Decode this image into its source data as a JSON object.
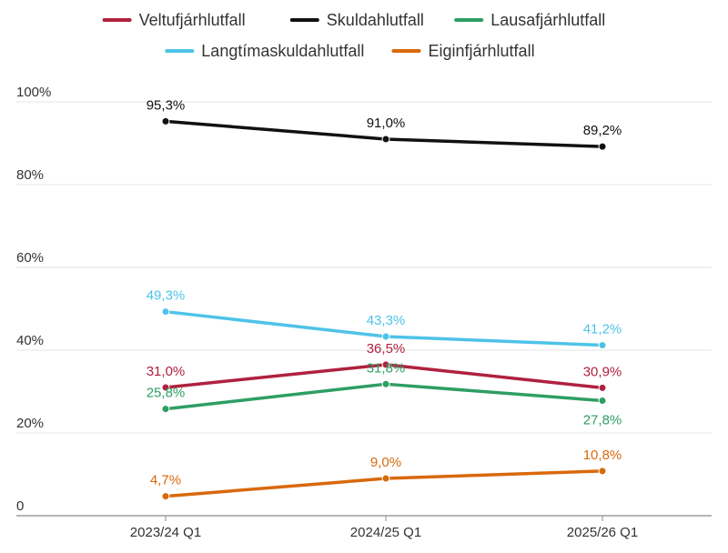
{
  "chart_data": {
    "type": "line",
    "title": "",
    "xlabel": "",
    "ylabel": "",
    "categories": [
      "2023/24 Q1",
      "2024/25 Q1",
      "2025/26 Q1"
    ],
    "y_ticks": [
      {
        "value": 0,
        "label": "0"
      },
      {
        "value": 20,
        "label": "20%"
      },
      {
        "value": 40,
        "label": "40%"
      },
      {
        "value": 60,
        "label": "60%"
      },
      {
        "value": 80,
        "label": "80%"
      },
      {
        "value": 100,
        "label": "100%"
      }
    ],
    "ylim": [
      0,
      100
    ],
    "grid": true,
    "legend_position": "top",
    "series": [
      {
        "name": "Veltufjárhlutfall",
        "color": "#b0213f",
        "values": [
          31.0,
          36.5,
          30.9
        ],
        "labels": [
          "31,0%",
          "36,5%",
          "30,9%"
        ],
        "label_pos": [
          "above",
          "above",
          "above"
        ]
      },
      {
        "name": "Skuldahlutfall",
        "color": "#111111",
        "values": [
          95.3,
          91.0,
          89.2
        ],
        "labels": [
          "95,3%",
          "91,0%",
          "89,2%"
        ],
        "label_pos": [
          "above",
          "above",
          "above"
        ]
      },
      {
        "name": "Lausafjárhlutfall",
        "color": "#2e9e63",
        "values": [
          25.8,
          31.8,
          27.8
        ],
        "labels": [
          "25,8%",
          "31,8%",
          "27,8%"
        ],
        "label_pos": [
          "above",
          "above",
          "below"
        ]
      },
      {
        "name": "Langtímaskuldahlutfall",
        "color": "#4ec3e8",
        "values": [
          49.3,
          43.3,
          41.2
        ],
        "labels": [
          "49,3%",
          "43,3%",
          "41,2%"
        ],
        "label_pos": [
          "above",
          "above",
          "above"
        ]
      },
      {
        "name": "Eiginfjárhlutfall",
        "color": "#d8690b",
        "values": [
          4.7,
          9.0,
          10.8
        ],
        "labels": [
          "4,7%",
          "9,0%",
          "10,8%"
        ],
        "label_pos": [
          "above",
          "above",
          "above"
        ]
      }
    ]
  }
}
